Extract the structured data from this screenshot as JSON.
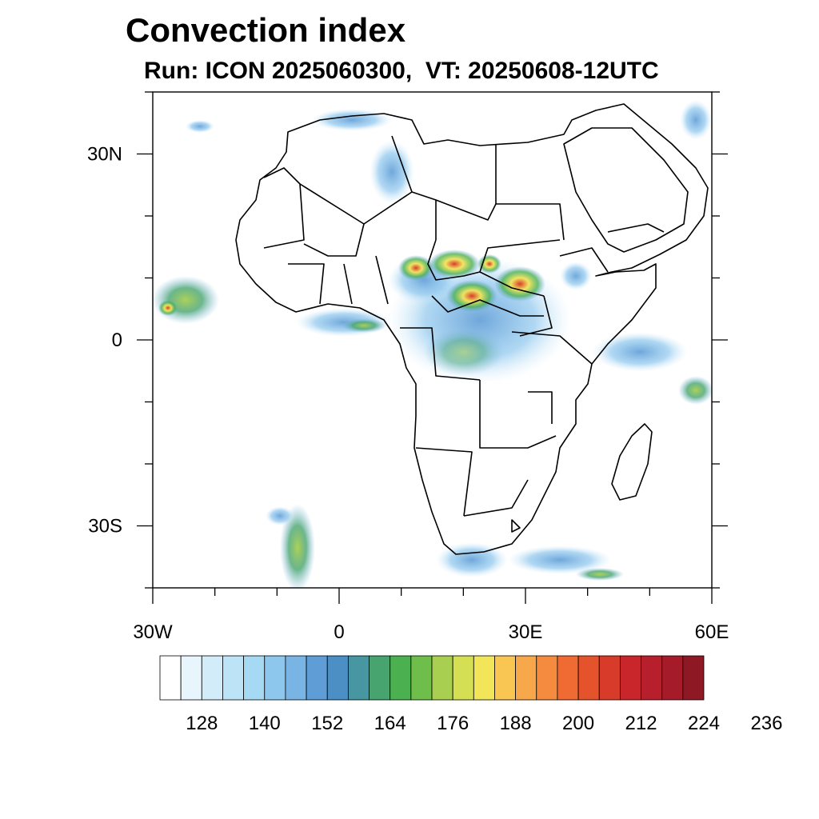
{
  "title": "Convection index",
  "subtitle": "Run: ICON 2025060300,  VT: 20250608-12UTC",
  "map": {
    "lon_range": [
      -30,
      60
    ],
    "lat_range": [
      -40,
      40
    ],
    "lat_ticks": [
      {
        "value": 30,
        "label": "30N"
      },
      {
        "value": 0,
        "label": "0"
      },
      {
        "value": -30,
        "label": "30S"
      }
    ],
    "lon_ticks": [
      {
        "value": -30,
        "label": "30W"
      },
      {
        "value": 0,
        "label": "0"
      },
      {
        "value": 30,
        "label": "30E"
      },
      {
        "value": 60,
        "label": "60E"
      }
    ],
    "minor_lat_ticks": [
      40,
      20,
      10,
      -10,
      -20,
      -40
    ],
    "minor_lon_ticks": [
      -20,
      -10,
      10,
      20,
      40,
      50
    ]
  },
  "colorbar": {
    "colors": [
      "#ffffff",
      "#e9f5fc",
      "#d3ecfa",
      "#bde3f7",
      "#a6d9f4",
      "#8ec7ee",
      "#78b4e4",
      "#5f9dd6",
      "#4b8fc4",
      "#4796a2",
      "#47a46f",
      "#4bb150",
      "#6fbd4a",
      "#a8cf4f",
      "#d5df53",
      "#f2e55a",
      "#f9c654",
      "#f7a84a",
      "#f58b3e",
      "#f06a33",
      "#e5532c",
      "#d93b2b",
      "#c9262c",
      "#b81f2c",
      "#a51b29",
      "#8e1824"
    ],
    "labels": [
      "128",
      "140",
      "152",
      "164",
      "176",
      "188",
      "200",
      "212",
      "224",
      "236"
    ]
  }
}
